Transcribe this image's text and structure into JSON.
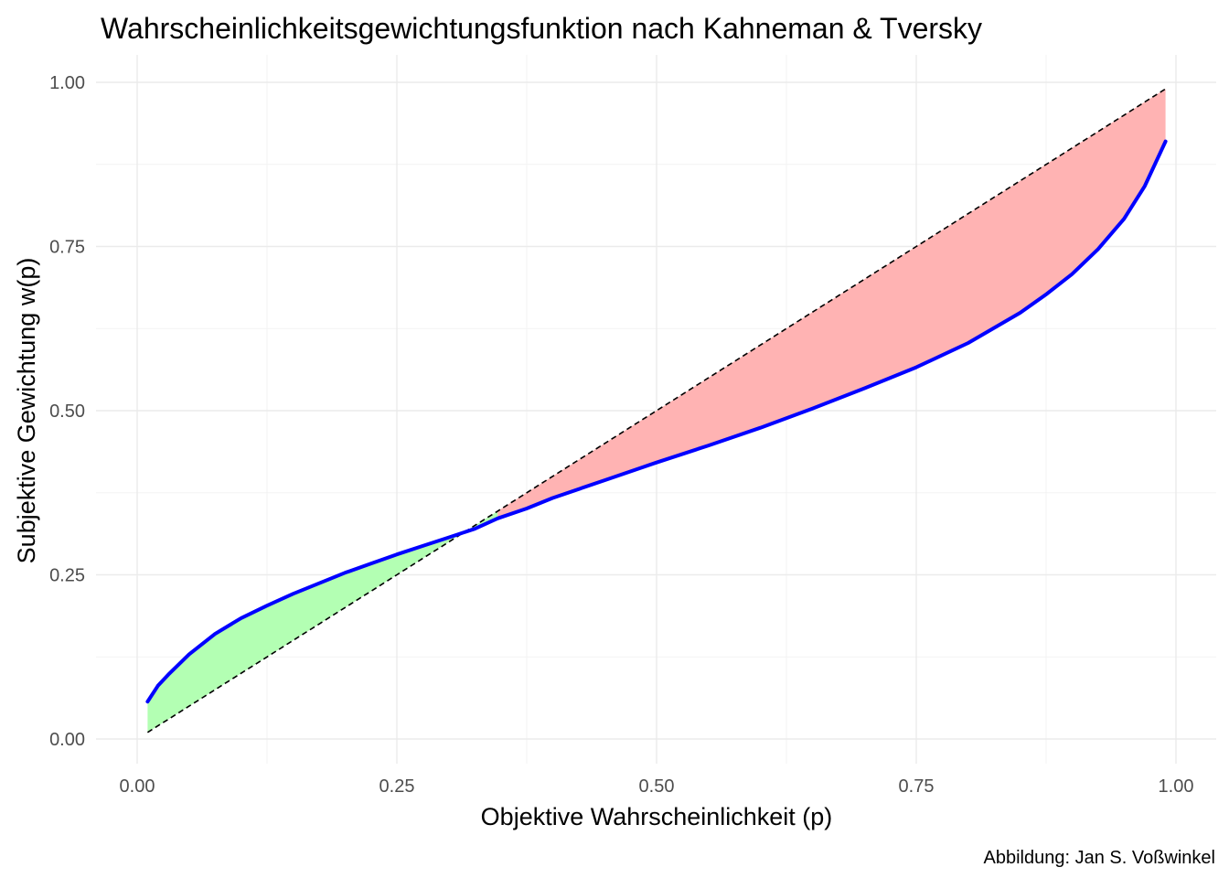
{
  "chart_data": {
    "type": "line",
    "title": "Wahrscheinlichkeitsgewichtungsfunktion nach Kahneman & Tversky",
    "xlabel": "Objektive Wahrscheinlichkeit (p)",
    "ylabel": "Subjektive Gewichtung w(p)",
    "caption": "Abbildung: Jan S. Voßwinkel",
    "xlim": [
      0,
      1
    ],
    "ylim": [
      0,
      1
    ],
    "x_ticks": [
      "0.00",
      "0.25",
      "0.50",
      "0.75",
      "1.00"
    ],
    "y_ticks": [
      "0.00",
      "0.25",
      "0.50",
      "0.75",
      "1.00"
    ],
    "grid": true,
    "x": [
      0.01,
      0.02,
      0.03,
      0.05,
      0.075,
      0.1,
      0.125,
      0.15,
      0.175,
      0.2,
      0.225,
      0.25,
      0.275,
      0.3,
      0.325,
      0.347,
      0.375,
      0.4,
      0.45,
      0.5,
      0.55,
      0.6,
      0.65,
      0.7,
      0.75,
      0.8,
      0.85,
      0.875,
      0.9,
      0.925,
      0.95,
      0.97,
      0.99
    ],
    "series": [
      {
        "values": [
          0.057,
          0.081,
          0.098,
          0.129,
          0.16,
          0.184,
          0.203,
          0.221,
          0.237,
          0.253,
          0.267,
          0.281,
          0.294,
          0.307,
          0.32,
          0.336,
          0.351,
          0.367,
          0.394,
          0.421,
          0.447,
          0.474,
          0.503,
          0.534,
          0.566,
          0.603,
          0.649,
          0.677,
          0.708,
          0.746,
          0.792,
          0.842,
          0.91
        ],
        "color": "#0000ff",
        "style": "solid"
      },
      {
        "values": [
          0.01,
          0.02,
          0.03,
          0.05,
          0.075,
          0.1,
          0.125,
          0.15,
          0.175,
          0.2,
          0.225,
          0.25,
          0.275,
          0.3,
          0.325,
          0.347,
          0.375,
          0.4,
          0.45,
          0.5,
          0.55,
          0.6,
          0.65,
          0.7,
          0.75,
          0.8,
          0.85,
          0.875,
          0.9,
          0.925,
          0.95,
          0.97,
          0.99
        ],
        "color": "#000000",
        "style": "dashed"
      }
    ],
    "fills": [
      {
        "x_range": [
          0.01,
          0.347
        ],
        "color": "#b3ffb3"
      },
      {
        "x_range": [
          0.347,
          0.99
        ],
        "color": "#ffb3b3"
      }
    ]
  }
}
